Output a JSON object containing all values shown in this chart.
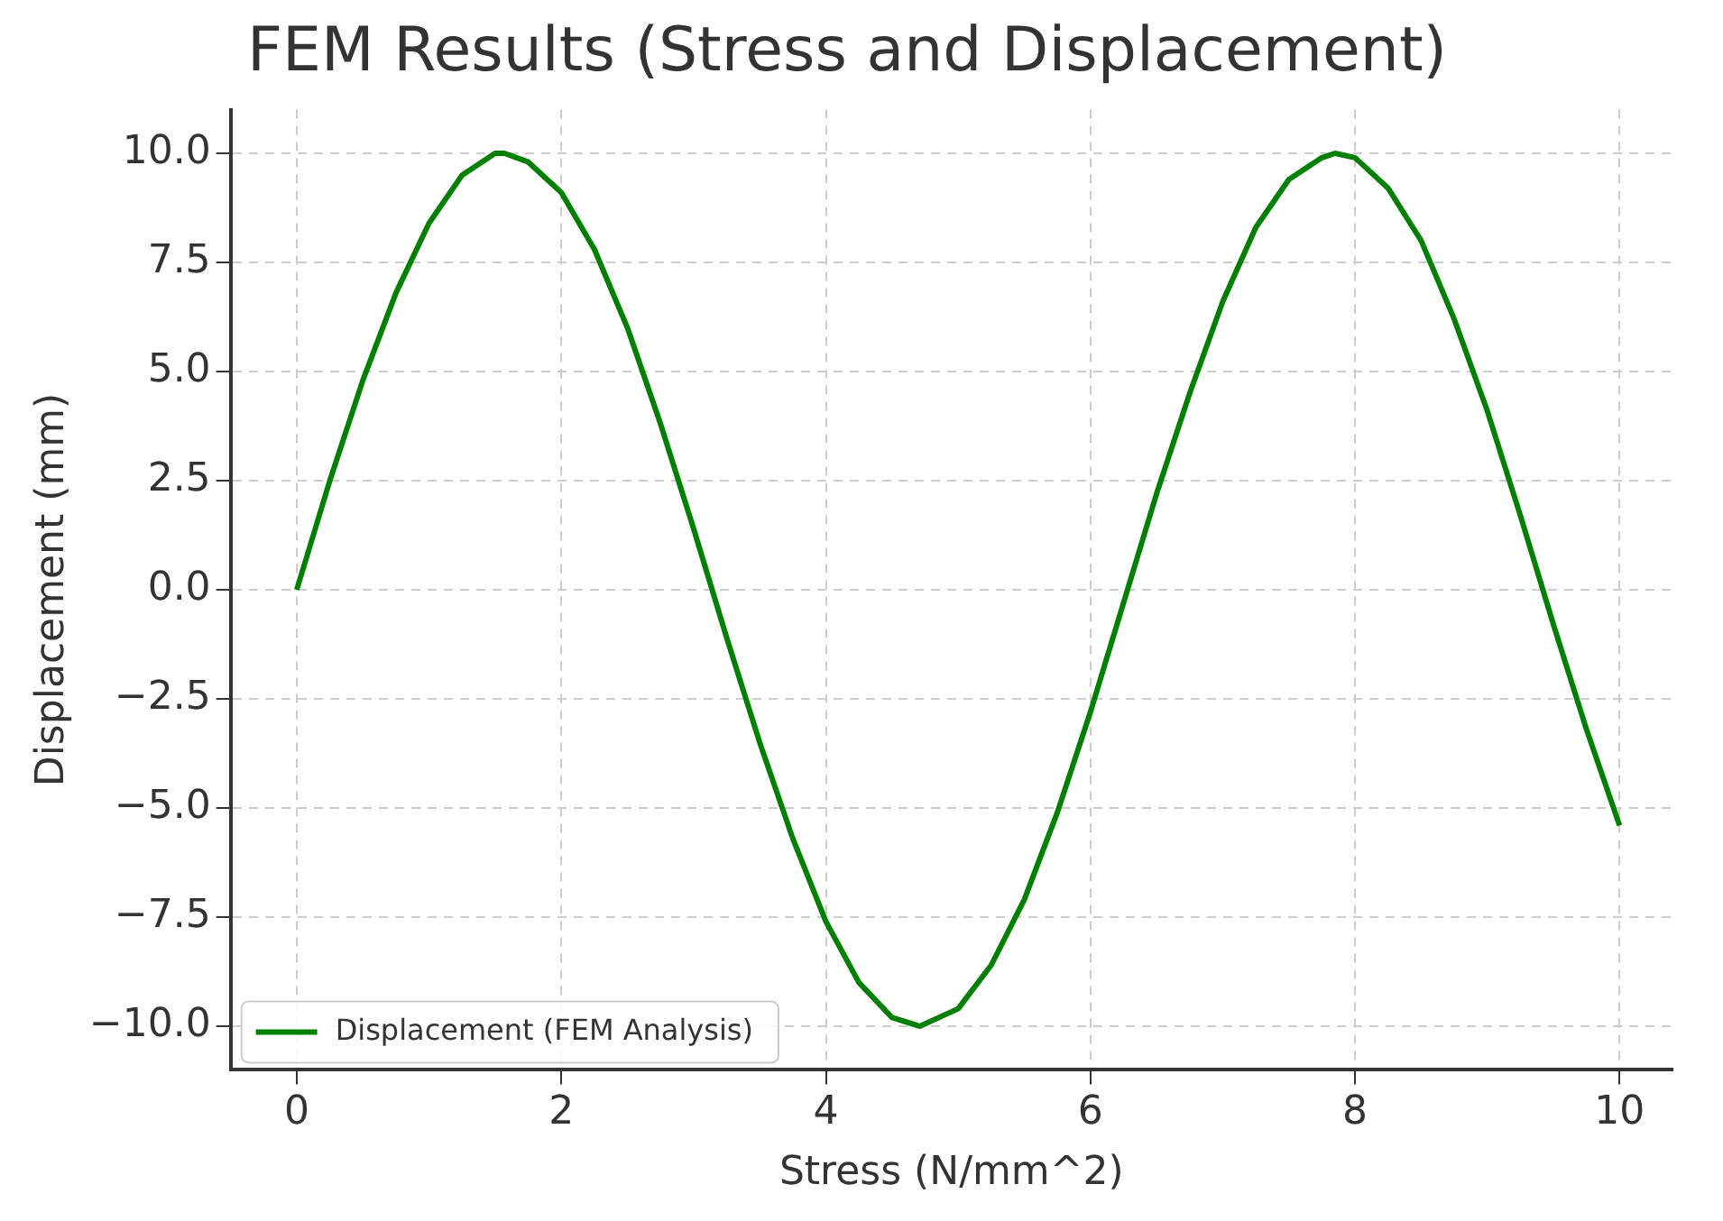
{
  "chart_data": {
    "type": "line",
    "title": "FEM Results (Stress and Displacement)",
    "xlabel": "Stress (N/mm^2)",
    "ylabel": "Displacement (mm)",
    "x": [
      0,
      0.25,
      0.5,
      0.75,
      1,
      1.25,
      1.5,
      1.57,
      1.75,
      2,
      2.25,
      2.5,
      2.75,
      3,
      3.25,
      3.5,
      3.75,
      4,
      4.25,
      4.5,
      4.71,
      5,
      5.25,
      5.5,
      5.75,
      6,
      6.25,
      6.5,
      6.75,
      7,
      7.25,
      7.5,
      7.75,
      7.85,
      8,
      8.25,
      8.5,
      8.75,
      9,
      9.25,
      9.5,
      9.75,
      10
    ],
    "series": [
      {
        "name": "Displacement (FEM Analysis)",
        "color": "#008000",
        "values": [
          0,
          2.5,
          4.8,
          6.8,
          8.4,
          9.5,
          10,
          10,
          9.8,
          9.1,
          7.8,
          6,
          3.8,
          1.4,
          -1.1,
          -3.5,
          -5.7,
          -7.6,
          -9,
          -9.8,
          -10,
          -9.6,
          -8.6,
          -7.1,
          -5.1,
          -2.8,
          -0.3,
          2.2,
          4.5,
          6.6,
          8.3,
          9.4,
          9.9,
          10,
          9.9,
          9.2,
          8,
          6.2,
          4.1,
          1.7,
          -0.8,
          -3.2,
          -5.4
        ]
      }
    ],
    "xlim": [
      -0.5,
      10.4
    ],
    "xticks": [
      0,
      2,
      4,
      6,
      8,
      10
    ],
    "ylim": [
      -11,
      11
    ],
    "yticks": [
      {
        "value": -10,
        "label": "−10.0"
      },
      {
        "value": -7.5,
        "label": "−7.5"
      },
      {
        "value": -5,
        "label": "−5.0"
      },
      {
        "value": -2.5,
        "label": "−2.5"
      },
      {
        "value": 0,
        "label": "0.0"
      },
      {
        "value": 2.5,
        "label": "2.5"
      },
      {
        "value": 5,
        "label": "5.0"
      },
      {
        "value": 7.5,
        "label": "7.5"
      },
      {
        "value": 10,
        "label": "10.0"
      }
    ],
    "grid": true,
    "legend": "bottom left",
    "line_style": "solid",
    "marker": "none"
  }
}
